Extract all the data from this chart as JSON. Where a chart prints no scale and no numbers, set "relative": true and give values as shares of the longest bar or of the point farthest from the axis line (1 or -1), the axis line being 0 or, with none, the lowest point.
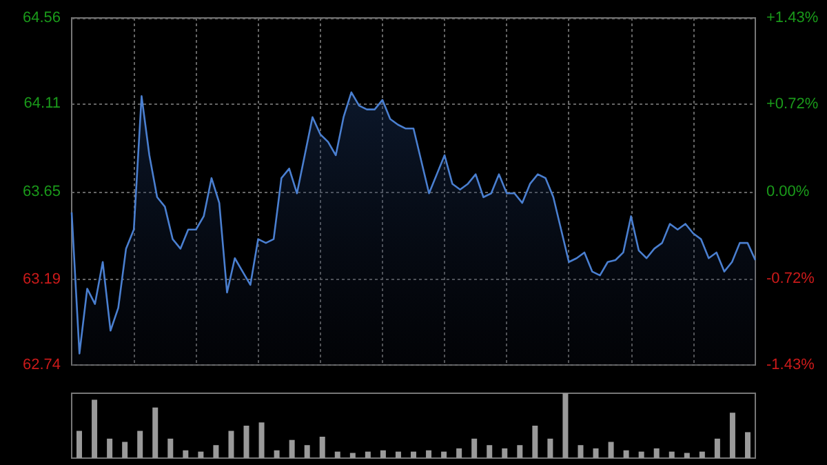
{
  "chart_data": [
    {
      "type": "area",
      "categories": [
        null,
        null,
        null,
        null,
        null,
        null,
        null,
        null,
        null,
        null,
        null,
        null,
        null,
        null,
        null,
        null,
        null,
        null,
        null,
        null,
        null,
        null,
        null,
        null,
        null,
        null,
        null,
        null,
        null,
        null,
        null,
        null,
        null,
        null,
        null,
        null,
        null,
        null,
        null,
        null,
        null,
        null,
        null,
        null,
        null,
        null,
        null,
        null,
        null,
        null,
        null,
        null,
        null,
        null,
        null,
        null,
        null,
        null,
        null,
        null,
        null,
        null,
        null,
        null,
        null,
        null,
        null,
        null,
        null,
        null,
        null,
        null,
        null,
        null,
        null,
        null,
        null,
        null,
        null,
        null,
        null,
        null,
        null,
        null,
        null,
        null,
        null,
        null,
        null
      ],
      "series": [
        {
          "color": "#4a7fd0",
          "values": [
            63.54,
            62.8,
            63.14,
            63.06,
            63.28,
            62.92,
            63.04,
            63.35,
            63.45,
            64.15,
            63.84,
            63.62,
            63.57,
            63.4,
            63.35,
            63.45,
            63.45,
            63.52,
            63.72,
            63.59,
            63.12,
            63.3,
            63.23,
            63.16,
            63.4,
            63.38,
            63.4,
            63.72,
            63.77,
            63.64,
            63.84,
            64.04,
            63.95,
            63.91,
            63.84,
            64.04,
            64.17,
            64.1,
            64.08,
            64.08,
            64.13,
            64.03,
            64.0,
            63.98,
            63.98,
            63.81,
            63.64,
            63.74,
            63.84,
            63.69,
            63.66,
            63.69,
            63.74,
            63.62,
            63.64,
            63.74,
            63.64,
            63.64,
            63.59,
            63.69,
            63.74,
            63.72,
            63.62,
            63.45,
            63.28,
            63.3,
            63.33,
            63.23,
            63.21,
            63.28,
            63.29,
            63.33,
            63.52,
            63.34,
            63.3,
            63.35,
            63.38,
            63.48,
            63.45,
            63.48,
            63.43,
            63.4,
            63.3,
            63.33,
            63.23,
            63.28,
            63.38,
            63.38,
            63.29
          ]
        }
      ],
      "ylim": [
        62.74,
        64.56
      ],
      "yticks": [
        62.74,
        63.19,
        63.65,
        64.11,
        64.56
      ],
      "y2lim": [
        -1.43,
        1.43
      ],
      "y2ticks": [
        {
          "value": -1.43,
          "label": "-1.43%"
        },
        {
          "value": -0.72,
          "label": "-0.72%"
        },
        {
          "value": 0,
          "label": "0.00%"
        },
        {
          "value": 0.72,
          "label": "+0.72%"
        },
        {
          "value": 1.43,
          "label": "+1.43%"
        }
      ],
      "grid": true,
      "tick_labels": "y"
    },
    {
      "type": "bar",
      "relative": true,
      "categories": [
        null,
        null,
        null,
        null,
        null,
        null,
        null,
        null,
        null,
        null,
        null,
        null,
        null,
        null,
        null,
        null,
        null,
        null,
        null,
        null,
        null,
        null,
        null,
        null,
        null,
        null,
        null,
        null,
        null,
        null,
        null,
        null,
        null,
        null,
        null,
        null,
        null,
        null,
        null,
        null,
        null,
        null,
        null,
        null,
        null
      ],
      "series": [
        {
          "color": "#9a9a9a",
          "values": [
            0.42,
            0.9,
            0.3,
            0.25,
            0.42,
            0.78,
            0.3,
            0.12,
            0.1,
            0.2,
            0.42,
            0.5,
            0.55,
            0.12,
            0.28,
            0.2,
            0.33,
            0.1,
            0.08,
            0.1,
            0.12,
            0.1,
            0.1,
            0.12,
            0.1,
            0.15,
            0.3,
            0.2,
            0.15,
            0.2,
            0.5,
            0.3,
            1,
            0.2,
            0.15,
            0.25,
            0.12,
            0.1,
            0.15,
            0.1,
            0.08,
            0.1,
            0.3,
            0.7,
            0.4
          ]
        }
      ],
      "tick_labels": false
    }
  ]
}
